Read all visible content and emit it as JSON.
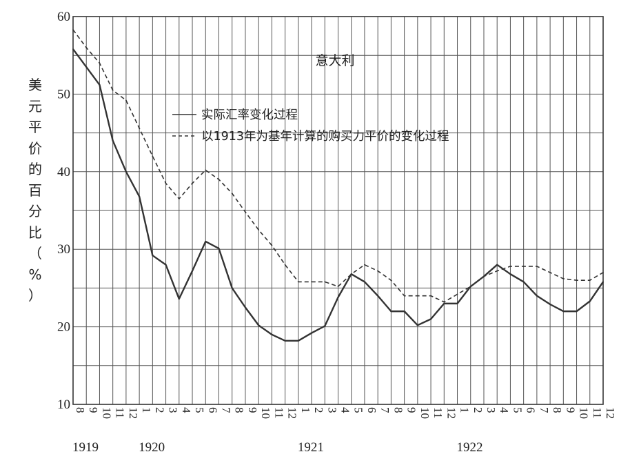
{
  "chart_data": {
    "type": "line",
    "title": "意大利",
    "ylabel_chars": [
      "美",
      "元",
      "平",
      "价",
      "的",
      "百",
      "分",
      "比",
      "（",
      "%",
      "）"
    ],
    "ylim": [
      10,
      60
    ],
    "yticks": [
      10,
      20,
      30,
      40,
      50,
      60
    ],
    "x_months": [
      "8",
      "9",
      "10",
      "11",
      "12",
      "1",
      "2",
      "3",
      "4",
      "5",
      "6",
      "7",
      "8",
      "9",
      "10",
      "11",
      "12",
      "1",
      "2",
      "3",
      "4",
      "5",
      "6",
      "7",
      "8",
      "9",
      "10",
      "11",
      "12",
      "1",
      "2",
      "3",
      "4",
      "5",
      "6",
      "7",
      "8",
      "9",
      "10",
      "11",
      "12"
    ],
    "x_years": [
      {
        "label": "1919",
        "index": 0
      },
      {
        "label": "1920",
        "index": 5
      },
      {
        "label": "1921",
        "index": 17
      },
      {
        "label": "1922",
        "index": 29
      }
    ],
    "grid": true,
    "legend_position": "upper-center",
    "series": [
      {
        "name": "实际汇率变化过程",
        "style": "solid",
        "values": [
          55.8,
          53.5,
          51.2,
          44,
          40,
          36.8,
          29.2,
          28,
          23.6,
          27.2,
          31,
          30.1,
          25,
          22.5,
          20.2,
          19,
          18.2,
          18.2,
          19.2,
          20.1,
          23.8,
          26.8,
          25.8,
          24,
          22,
          22,
          20.2,
          21,
          23,
          23,
          25.2,
          26.5,
          28,
          26.8,
          25.8,
          24,
          22.9,
          22,
          22,
          23.3,
          25.8
        ]
      },
      {
        "name": "以1913年为基年计算的购买力平价的变化过程",
        "style": "dashed",
        "values": [
          58.3,
          56,
          54,
          50.5,
          49.2,
          45.6,
          42,
          38.5,
          36.5,
          38.5,
          40.2,
          39,
          37.2,
          34.8,
          32.5,
          30.5,
          28,
          25.8,
          25.8,
          25.8,
          25.2,
          26.8,
          28,
          27.2,
          26,
          24,
          24,
          24,
          23.2,
          24.2,
          25.2,
          26.5,
          27.2,
          27.8,
          27.8,
          27.8,
          27,
          26.2,
          26,
          26,
          27
        ]
      }
    ]
  }
}
